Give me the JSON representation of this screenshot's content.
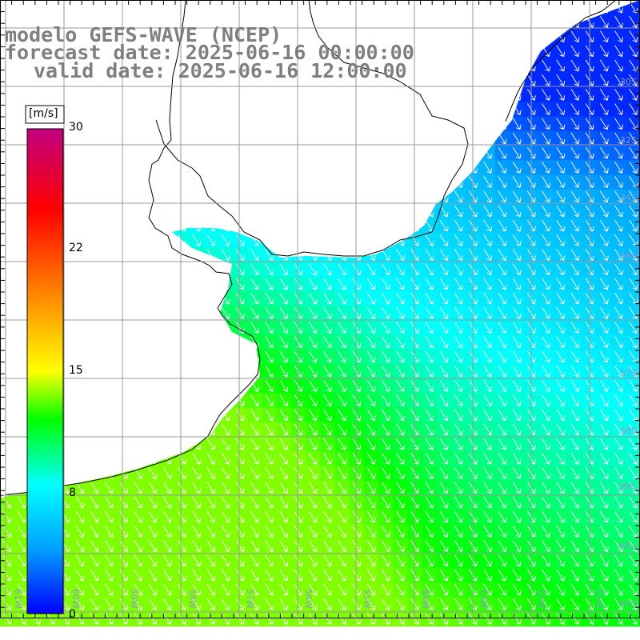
{
  "title": {
    "line1": "modelo GEFS-WAVE (NCEP)",
    "line2": "forecast date: 2025-06-16 00:00:00",
    "line3": "valid date: 2025-06-16 12:00:00"
  },
  "colorbar": {
    "unit": "[m/s]",
    "range": [
      0,
      30
    ],
    "ticks": [
      "30",
      "22",
      "15",
      "8",
      "0"
    ],
    "tick_values": [
      30,
      22,
      15,
      8,
      0
    ],
    "colors": [
      "#0000ff",
      "#00a0ff",
      "#00ffff",
      "#00ff00",
      "#ffff00",
      "#ff8000",
      "#ff0000",
      "#c00080"
    ],
    "color_stops_values": [
      0,
      4,
      8,
      12,
      15,
      20,
      25,
      30
    ]
  },
  "grid": {
    "lat_labels": [
      "30S",
      "32S",
      "34S",
      "36S",
      "37S",
      "38S",
      "39S",
      "40S",
      "41S"
    ],
    "lon_labels": [
      "61W",
      "60W",
      "59W",
      "58W",
      "57W",
      "56W",
      "55W",
      "54W",
      "53W",
      "52W",
      "51W"
    ]
  },
  "map_data": {
    "field": "wind speed with direction arrows",
    "land_color": "#ffffff",
    "coast_color": "#000000",
    "grid_color": "#a0a0a0",
    "wind_direction": "from north-west toward south-east",
    "speed_pattern": "strongest (~11-13 m/s) near coast in south-west, weaker (~4-6 m/s) offshore to north-east"
  }
}
